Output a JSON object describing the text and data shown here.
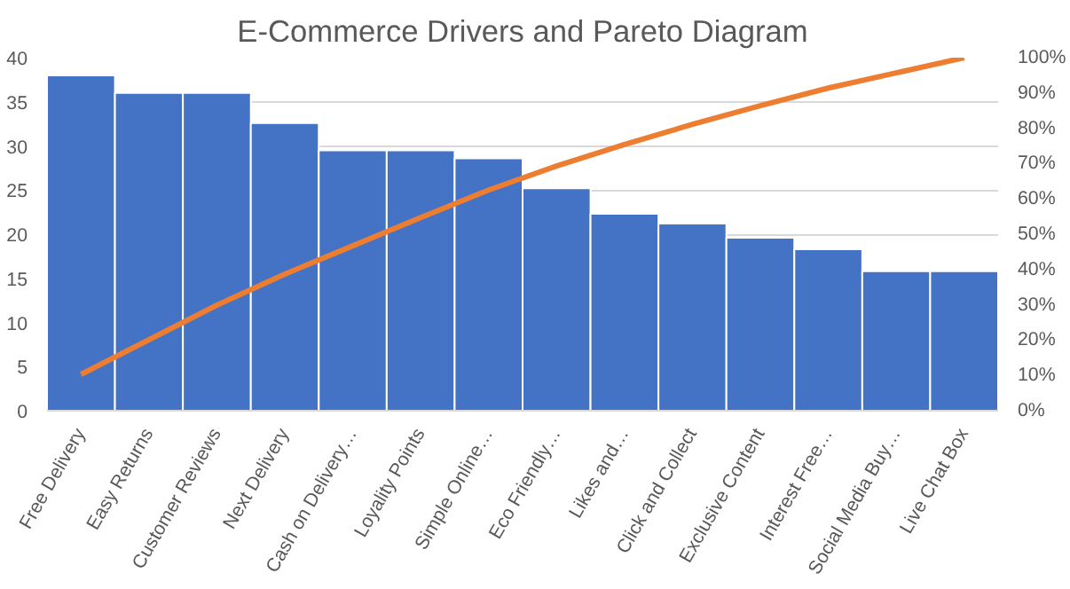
{
  "chart_data": {
    "type": "bar",
    "title": "E-Commerce Drivers and Pareto Diagram",
    "categories": [
      "Free Delivery",
      "Easy Returns",
      "Customer Reviews",
      "Next Delivery",
      "Cash on Delivery…",
      "Loyality Points",
      "Simple Online…",
      "Eco Friendly…",
      "Likes and…",
      "Click and Collect",
      "Exclusive Content",
      "Interest Free…",
      "Social Media Buy…",
      "Live Chat Box"
    ],
    "series": [
      {
        "color": "#4472c4",
        "values": [
          38,
          36,
          36,
          32.6,
          29.5,
          29.5,
          28.6,
          25.2,
          22.3,
          21.2,
          19.6,
          18.3,
          15.8,
          15.8
        ]
      },
      {
        "type": "line",
        "axis": "y2",
        "color": "#ed7d31",
        "values": [
          10.3,
          20.1,
          29.9,
          38.7,
          46.7,
          54.7,
          62.5,
          69.3,
          75.4,
          81.1,
          86.4,
          91.4,
          95.7,
          100
        ]
      }
    ],
    "ylim": [
      0,
      40
    ],
    "yticks": [
      0,
      5,
      10,
      15,
      20,
      25,
      30,
      35,
      40
    ],
    "y2lim": [
      0,
      100
    ],
    "y2ticks": [
      {
        "value": 0,
        "label": "0%"
      },
      {
        "value": 10,
        "label": "10%"
      },
      {
        "value": 20,
        "label": "20%"
      },
      {
        "value": 30,
        "label": "30%"
      },
      {
        "value": 40,
        "label": "40%"
      },
      {
        "value": 50,
        "label": "50%"
      },
      {
        "value": 60,
        "label": "60%"
      },
      {
        "value": 70,
        "label": "70%"
      },
      {
        "value": 80,
        "label": "80%"
      },
      {
        "value": 90,
        "label": "90%"
      },
      {
        "value": 100,
        "label": "100%"
      }
    ],
    "grid": "y"
  }
}
